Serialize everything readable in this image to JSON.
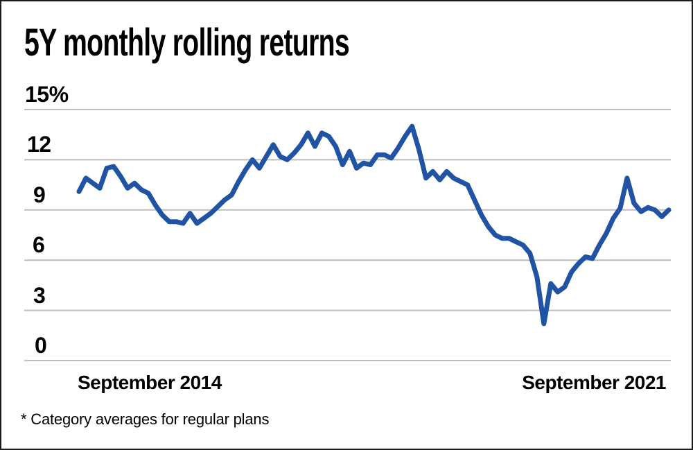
{
  "title": "5Y monthly rolling returns",
  "footnote": "* Category averages for regular plans",
  "x_axis": {
    "start_label": "September 2014",
    "end_label": "September 2021"
  },
  "y_axis": {
    "tick_labels": [
      "15%",
      "12",
      "9",
      "6",
      "3",
      "0"
    ],
    "tick_values": [
      15,
      12,
      9,
      6,
      3,
      0
    ]
  },
  "colors": {
    "line": "#2053a3",
    "gridline": "#bdbdbd",
    "text": "#000000",
    "frame_border": "#1c1c1c",
    "background": "#ffffff"
  },
  "chart_data": {
    "type": "line",
    "title": "5Y monthly rolling returns",
    "series_name": "5Y rolling return (category average, regular plans)",
    "unit": "%",
    "x_start": "September 2014",
    "x_end": "September 2021",
    "x_frequency": "monthly",
    "ylim": [
      0,
      15
    ],
    "yticks": [
      0,
      3,
      6,
      9,
      12,
      15
    ],
    "grid": true,
    "legend": false,
    "values": [
      10.1,
      10.9,
      10.6,
      10.3,
      11.5,
      11.6,
      11.0,
      10.3,
      10.6,
      10.2,
      10.0,
      9.3,
      8.7,
      8.3,
      8.3,
      8.2,
      8.8,
      8.2,
      8.5,
      8.8,
      9.2,
      9.6,
      9.9,
      10.7,
      11.4,
      12.0,
      11.5,
      12.2,
      12.9,
      12.2,
      12.0,
      12.4,
      12.9,
      13.6,
      12.8,
      13.6,
      13.4,
      12.8,
      11.7,
      12.5,
      11.5,
      11.8,
      11.7,
      12.3,
      12.3,
      12.1,
      12.7,
      13.4,
      14.0,
      12.6,
      10.9,
      11.3,
      10.8,
      11.3,
      10.9,
      10.7,
      10.5,
      9.6,
      8.7,
      8.0,
      7.5,
      7.3,
      7.3,
      7.1,
      6.9,
      6.4,
      5.0,
      2.2,
      4.6,
      4.1,
      4.4,
      5.3,
      5.8,
      6.2,
      6.1,
      6.9,
      7.6,
      8.5,
      9.1,
      10.9,
      9.4,
      8.9,
      9.15,
      9.0,
      8.6,
      9.0
    ]
  }
}
